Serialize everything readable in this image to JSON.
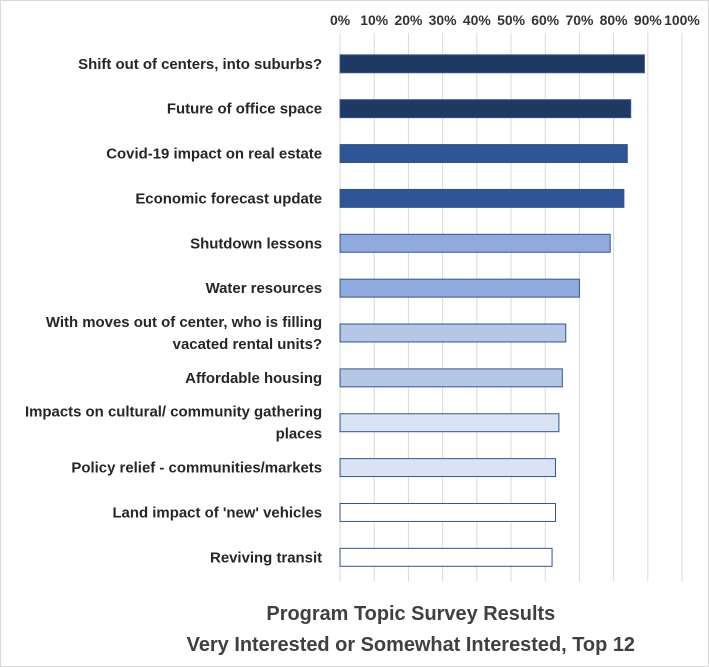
{
  "chart_data": {
    "type": "bar",
    "orientation": "horizontal",
    "title": "Program Topic Survey Results",
    "subtitle": "Very Interested or Somewhat Interested, Top 12",
    "xlabel": "",
    "ylabel": "",
    "xlim": [
      0,
      100
    ],
    "x_ticks": [
      "0%",
      "10%",
      "20%",
      "30%",
      "40%",
      "50%",
      "60%",
      "70%",
      "80%",
      "90%",
      "100%"
    ],
    "x_axis_position": "top",
    "grid": true,
    "categories": [
      [
        "Shift out of centers, into suburbs?"
      ],
      [
        "Future of office space"
      ],
      [
        "Covid-19 impact on real estate"
      ],
      [
        "Economic forecast update"
      ],
      [
        "Shutdown lessons"
      ],
      [
        "Water resources"
      ],
      [
        "With moves out of center, who is filling",
        "vacated rental units?"
      ],
      [
        "Affordable housing"
      ],
      [
        "Impacts on cultural/ community gathering",
        "places"
      ],
      [
        "Policy relief - communities/markets"
      ],
      [
        "Land impact of 'new' vehicles"
      ],
      [
        "Reviving transit"
      ]
    ],
    "values": [
      89,
      85,
      84,
      83,
      79,
      70,
      66,
      65,
      64,
      63,
      63,
      62
    ],
    "colors": [
      "#1f3864",
      "#1f3864",
      "#2f5597",
      "#2f5597",
      "#8faadc",
      "#8faadc",
      "#b4c7e7",
      "#b4c7e7",
      "#dae3f3",
      "#dae3f3",
      "#ffffff",
      "#ffffff"
    ],
    "bar_stroke": "#2f5597",
    "grid_color": "#d9d9d9"
  }
}
